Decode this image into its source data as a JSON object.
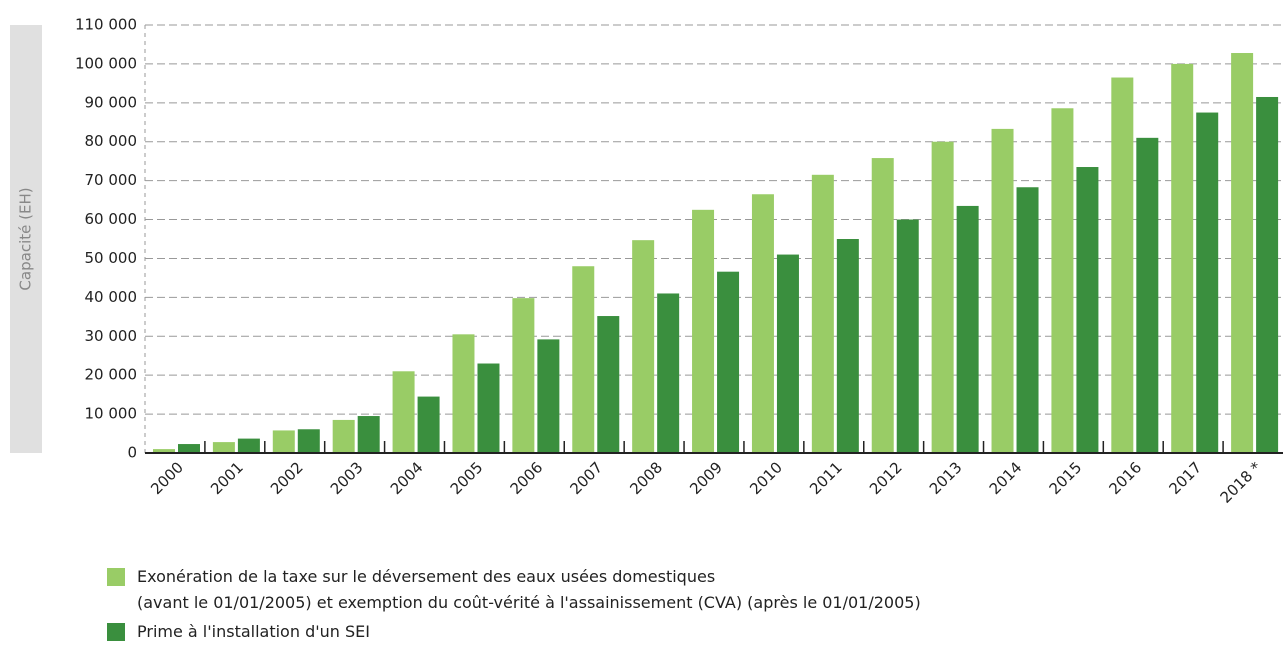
{
  "chart_data": {
    "type": "bar",
    "y_label": "Capacité (EH)",
    "categories": [
      "2000",
      "2001",
      "2002",
      "2003",
      "2004",
      "2005",
      "2006",
      "2007",
      "2008",
      "2009",
      "2010",
      "2011",
      "2012",
      "2013",
      "2014",
      "2015",
      "2016",
      "2017",
      "2018 *"
    ],
    "series": [
      {
        "name": "Exonération de la taxe sur le déversement des eaux usées domestiques\n(avant le 01/01/2005) et exemption du coût-vérité à l'assainissement (CVA) (après le 01/01/2005)",
        "color": "#99cc66",
        "values": [
          1000,
          2800,
          5800,
          8500,
          21000,
          30500,
          39800,
          48000,
          54700,
          62500,
          66500,
          71500,
          75800,
          80000,
          83300,
          88600,
          96500,
          100000,
          102800
        ]
      },
      {
        "name": "Prime à l'installation d'un SEI",
        "color": "#3a8f3e",
        "values": [
          2300,
          3700,
          6100,
          9500,
          14500,
          23000,
          29200,
          35200,
          41000,
          46600,
          51000,
          55000,
          60000,
          63500,
          68300,
          73500,
          81000,
          87500,
          91500
        ]
      }
    ],
    "ylim": [
      0,
      110000
    ],
    "yticks": [
      0,
      {
        "value": 10000,
        "label": "10 000"
      },
      {
        "value": 20000,
        "label": "20 000"
      },
      {
        "value": 30000,
        "label": "30 000"
      },
      {
        "value": 40000,
        "label": "40 000"
      },
      {
        "value": 50000,
        "label": "50 000"
      },
      {
        "value": 60000,
        "label": "60 000"
      },
      {
        "value": 70000,
        "label": "70 000"
      },
      {
        "value": 80000,
        "label": "80 000"
      },
      {
        "value": 90000,
        "label": "90 000"
      },
      {
        "value": 100000,
        "label": "100 000"
      },
      {
        "value": 110000,
        "label": "110 000"
      }
    ],
    "grid": true
  }
}
